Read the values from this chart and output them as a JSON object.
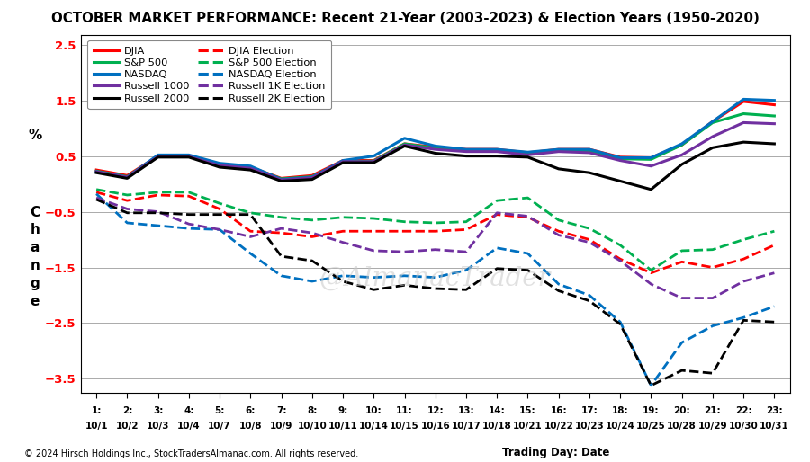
{
  "title": "OCTOBER MARKET PERFORMANCE: Recent 21-Year (2003-2023) & Election Years (1950-2020)",
  "x_labels_top": [
    "1:",
    "2:",
    "3:",
    "4:",
    "5:",
    "6:",
    "7:",
    "8:",
    "9:",
    "10:",
    "11:",
    "12:",
    "13:",
    "14:",
    "15:",
    "16:",
    "17:",
    "18:",
    "19:",
    "20:",
    "21:",
    "22:",
    "23:"
  ],
  "x_labels_bot": [
    "10/1",
    "10/2",
    "10/3",
    "10/4",
    "10/7",
    "10/8",
    "10/9",
    "10/10",
    "10/11",
    "10/14",
    "10/15",
    "10/16",
    "10/17",
    "10/18",
    "10/21",
    "10/22",
    "10/23",
    "10/24",
    "10/25",
    "10/28",
    "10/29",
    "10/30",
    "10/31"
  ],
  "footer_left": "© 2024 Hirsch Holdings Inc., StockTradersAlmanac.com. All rights reserved.",
  "footer_right": "Trading Day: Date",
  "watermark": "@AlmanacTrader",
  "ylim": [
    -3.75,
    2.68
  ],
  "yticks": [
    -3.5,
    -2.5,
    -1.5,
    -0.5,
    0.5,
    1.5,
    2.5
  ],
  "ytick_labels": [
    "−3.5",
    "−2.5",
    "−1.5",
    "−0.5",
    "0.5",
    "1.5",
    "2.5"
  ],
  "background_color": "#FFFFFF",
  "grid_color": "#AAAAAA",
  "ylabel_pct": "%",
  "ylabel_change": "C\nh\na\nn\ng\ne",
  "series": [
    {
      "name": "DJIA",
      "color": "#FF0000",
      "linestyle": "solid",
      "linewidth": 2.2,
      "values": [
        0.25,
        0.15,
        0.5,
        0.5,
        0.35,
        0.3,
        0.1,
        0.15,
        0.42,
        0.42,
        0.72,
        0.66,
        0.62,
        0.62,
        0.56,
        0.62,
        0.62,
        0.48,
        0.47,
        0.7,
        1.12,
        1.48,
        1.42
      ]
    },
    {
      "name": "S&P 500",
      "color": "#00B050",
      "linestyle": "solid",
      "linewidth": 2.2,
      "values": [
        0.23,
        0.13,
        0.5,
        0.5,
        0.34,
        0.3,
        0.09,
        0.13,
        0.4,
        0.41,
        0.72,
        0.64,
        0.6,
        0.6,
        0.54,
        0.6,
        0.58,
        0.45,
        0.44,
        0.7,
        1.1,
        1.26,
        1.22
      ]
    },
    {
      "name": "NASDAQ",
      "color": "#0070C0",
      "linestyle": "solid",
      "linewidth": 2.2,
      "values": [
        0.22,
        0.12,
        0.52,
        0.52,
        0.37,
        0.32,
        0.08,
        0.12,
        0.42,
        0.5,
        0.82,
        0.68,
        0.62,
        0.62,
        0.57,
        0.62,
        0.62,
        0.47,
        0.47,
        0.72,
        1.12,
        1.52,
        1.5
      ]
    },
    {
      "name": "Russell 1000",
      "color": "#7030A0",
      "linestyle": "solid",
      "linewidth": 2.2,
      "values": [
        0.22,
        0.12,
        0.49,
        0.49,
        0.33,
        0.28,
        0.07,
        0.11,
        0.4,
        0.4,
        0.7,
        0.62,
        0.58,
        0.58,
        0.52,
        0.58,
        0.56,
        0.42,
        0.32,
        0.52,
        0.85,
        1.1,
        1.08
      ]
    },
    {
      "name": "Russell 2000",
      "color": "#000000",
      "linestyle": "solid",
      "linewidth": 2.2,
      "values": [
        0.2,
        0.1,
        0.48,
        0.48,
        0.3,
        0.25,
        0.05,
        0.08,
        0.38,
        0.38,
        0.68,
        0.55,
        0.5,
        0.5,
        0.48,
        0.27,
        0.2,
        0.05,
        -0.1,
        0.35,
        0.65,
        0.75,
        0.72
      ]
    },
    {
      "name": "DJIA Election",
      "color": "#FF0000",
      "linestyle": "dashed",
      "linewidth": 2.0,
      "values": [
        -0.15,
        -0.3,
        -0.2,
        -0.22,
        -0.45,
        -0.85,
        -0.88,
        -0.95,
        -0.85,
        -0.85,
        -0.85,
        -0.85,
        -0.82,
        -0.55,
        -0.6,
        -0.85,
        -1.0,
        -1.35,
        -1.6,
        -1.4,
        -1.5,
        -1.35,
        -1.1
      ]
    },
    {
      "name": "S&P 500 Election",
      "color": "#00B050",
      "linestyle": "dashed",
      "linewidth": 2.0,
      "values": [
        -0.1,
        -0.2,
        -0.15,
        -0.15,
        -0.35,
        -0.52,
        -0.6,
        -0.65,
        -0.6,
        -0.62,
        -0.68,
        -0.7,
        -0.68,
        -0.3,
        -0.25,
        -0.65,
        -0.8,
        -1.1,
        -1.55,
        -1.2,
        -1.18,
        -1.0,
        -0.85
      ]
    },
    {
      "name": "NASDAQ Election",
      "color": "#0070C0",
      "linestyle": "dashed",
      "linewidth": 2.0,
      "values": [
        -0.18,
        -0.7,
        -0.75,
        -0.8,
        -0.82,
        -1.25,
        -1.65,
        -1.75,
        -1.65,
        -1.68,
        -1.65,
        -1.68,
        -1.55,
        -1.15,
        -1.25,
        -1.8,
        -2.0,
        -2.48,
        -3.62,
        -2.85,
        -2.55,
        -2.4,
        -2.2
      ]
    },
    {
      "name": "Russell 1K Election",
      "color": "#7030A0",
      "linestyle": "dashed",
      "linewidth": 2.0,
      "values": [
        -0.25,
        -0.45,
        -0.5,
        -0.72,
        -0.82,
        -0.95,
        -0.8,
        -0.88,
        -1.05,
        -1.2,
        -1.22,
        -1.18,
        -1.22,
        -0.52,
        -0.58,
        -0.92,
        -1.05,
        -1.38,
        -1.8,
        -2.05,
        -2.05,
        -1.75,
        -1.6
      ]
    },
    {
      "name": "Russell 2K Election",
      "color": "#000000",
      "linestyle": "dashed",
      "linewidth": 2.0,
      "values": [
        -0.28,
        -0.52,
        -0.52,
        -0.55,
        -0.55,
        -0.55,
        -1.3,
        -1.38,
        -1.75,
        -1.9,
        -1.82,
        -1.88,
        -1.9,
        -1.52,
        -1.55,
        -1.92,
        -2.1,
        -2.52,
        -3.62,
        -3.35,
        -3.4,
        -2.45,
        -2.48
      ]
    }
  ],
  "legend_items": [
    [
      "DJIA",
      "#FF0000",
      "solid"
    ],
    [
      "S&P 500",
      "#00B050",
      "solid"
    ],
    [
      "NASDAQ",
      "#0070C0",
      "solid"
    ],
    [
      "Russell 1000",
      "#7030A0",
      "solid"
    ],
    [
      "Russell 2000",
      "#000000",
      "solid"
    ],
    [
      "DJIA Election",
      "#FF0000",
      "dashed"
    ],
    [
      "S&P 500 Election",
      "#00B050",
      "dashed"
    ],
    [
      "NASDAQ Election",
      "#0070C0",
      "dashed"
    ],
    [
      "Russell 1K Election",
      "#7030A0",
      "dashed"
    ],
    [
      "Russell 2K Election",
      "#000000",
      "dashed"
    ]
  ]
}
